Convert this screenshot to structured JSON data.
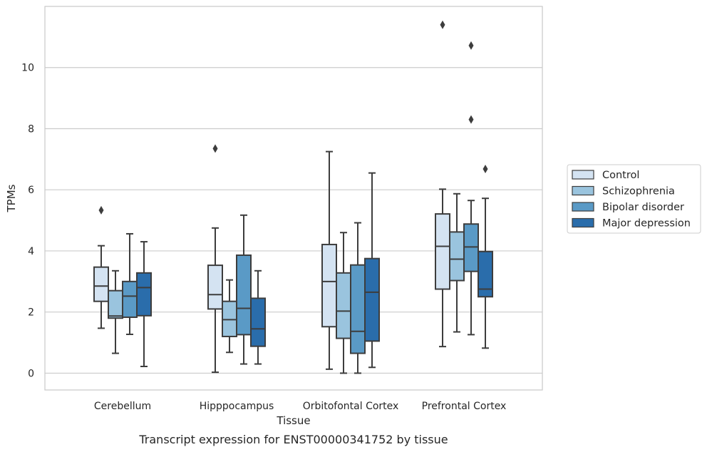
{
  "chart_data": {
    "type": "box",
    "title": "Transcript expression for ENST00000341752 by tissue",
    "xlabel": "Tissue",
    "ylabel": "TPMs",
    "categories": [
      "Cerebellum",
      "Hipppocampus",
      "Orbitofontal Cortex",
      "Prefrontal Cortex"
    ],
    "ylim": [
      -0.55,
      12.0
    ],
    "yticks": [
      "0",
      "2",
      "4",
      "6",
      "8",
      "10"
    ],
    "grid": "horizontal",
    "legend_position": "right",
    "series": [
      {
        "name": "Control",
        "color": "#d4e3f2",
        "boxes": [
          {
            "whisker_low": 1.47,
            "q1": 2.35,
            "median": 2.85,
            "q3": 3.47,
            "whisker_high": 4.17,
            "outliers": [
              5.33
            ]
          },
          {
            "whisker_low": 0.03,
            "q1": 2.1,
            "median": 2.57,
            "q3": 3.53,
            "whisker_high": 4.75,
            "outliers": [
              7.35
            ]
          },
          {
            "whisker_low": 0.13,
            "q1": 1.52,
            "median": 3.0,
            "q3": 4.21,
            "whisker_high": 7.25,
            "outliers": []
          },
          {
            "whisker_low": 0.87,
            "q1": 2.75,
            "median": 4.15,
            "q3": 5.21,
            "whisker_high": 6.02,
            "outliers": [
              11.4
            ]
          }
        ]
      },
      {
        "name": "Schizophrenia",
        "color": "#9ac4de",
        "boxes": [
          {
            "whisker_low": 0.65,
            "q1": 1.8,
            "median": 1.87,
            "q3": 2.7,
            "whisker_high": 3.35,
            "outliers": []
          },
          {
            "whisker_low": 0.68,
            "q1": 1.2,
            "median": 1.75,
            "q3": 2.35,
            "whisker_high": 3.05,
            "outliers": []
          },
          {
            "whisker_low": 0.0,
            "q1": 1.14,
            "median": 2.03,
            "q3": 3.28,
            "whisker_high": 4.6,
            "outliers": []
          },
          {
            "whisker_low": 1.35,
            "q1": 3.03,
            "median": 3.73,
            "q3": 4.62,
            "whisker_high": 5.87,
            "outliers": []
          }
        ]
      },
      {
        "name": "Bipolar disorder",
        "color": "#5a9ac6",
        "boxes": [
          {
            "whisker_low": 1.27,
            "q1": 1.83,
            "median": 2.52,
            "q3": 3.0,
            "whisker_high": 4.56,
            "outliers": []
          },
          {
            "whisker_low": 0.3,
            "q1": 1.26,
            "median": 2.12,
            "q3": 3.86,
            "whisker_high": 5.17,
            "outliers": []
          },
          {
            "whisker_low": 0.0,
            "q1": 0.65,
            "median": 1.37,
            "q3": 3.54,
            "whisker_high": 4.92,
            "outliers": []
          },
          {
            "whisker_low": 1.26,
            "q1": 3.33,
            "median": 4.13,
            "q3": 4.88,
            "whisker_high": 5.65,
            "outliers": [
              8.3,
              10.72
            ]
          }
        ]
      },
      {
        "name": "Major depression",
        "color": "#2a6dab",
        "boxes": [
          {
            "whisker_low": 0.22,
            "q1": 1.88,
            "median": 2.8,
            "q3": 3.28,
            "whisker_high": 4.3,
            "outliers": []
          },
          {
            "whisker_low": 0.3,
            "q1": 0.88,
            "median": 1.45,
            "q3": 2.45,
            "whisker_high": 3.35,
            "outliers": []
          },
          {
            "whisker_low": 0.19,
            "q1": 1.05,
            "median": 2.65,
            "q3": 3.75,
            "whisker_high": 6.55,
            "outliers": []
          },
          {
            "whisker_low": 0.82,
            "q1": 2.5,
            "median": 2.75,
            "q3": 3.98,
            "whisker_high": 5.72,
            "outliers": [
              6.68
            ]
          }
        ]
      }
    ]
  }
}
